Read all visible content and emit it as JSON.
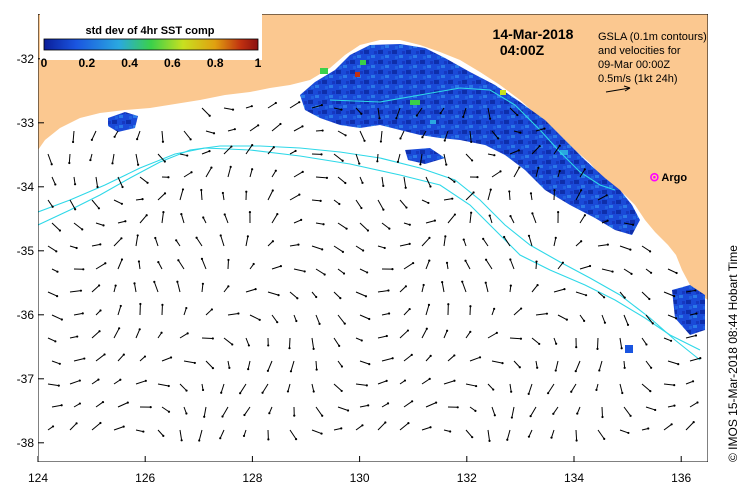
{
  "title": {
    "date": "14-Mar-2018",
    "time": "04:00Z"
  },
  "colorbar": {
    "title": "std dev of 4hr SST comp",
    "tick_labels": [
      "0",
      "0.2",
      "0.4",
      "0.6",
      "0.8",
      "1"
    ],
    "colors": [
      "#0a1e9a",
      "#1a55e0",
      "#2aa8e0",
      "#3ad04a",
      "#c8e020",
      "#e0a010",
      "#c03010",
      "#8a1010"
    ]
  },
  "gsla_note": {
    "line1": "GSLA (0.1m contours)",
    "line2": "and velocities for",
    "line3": "09-Mar 00:00Z",
    "line4": "0.5m/s (1kt 24h)"
  },
  "argo": {
    "label": "Argo",
    "lon": 135.5,
    "lat": -33.85,
    "color": "#ff00ff"
  },
  "credit": "© IMOS 15-Mar-2018 08:44 Hobart Time",
  "axes": {
    "x_ticks": [
      124,
      126,
      128,
      130,
      132,
      134,
      136
    ],
    "x_tick_labels": [
      "124",
      "126",
      "128",
      "130",
      "132",
      "134",
      "136"
    ],
    "y_ticks": [
      -32,
      -33,
      -34,
      -35,
      -36,
      -37,
      -38
    ],
    "y_tick_labels": [
      "-32",
      "-33",
      "-34",
      "-35",
      "-36",
      "-37",
      "-38"
    ],
    "lon_range": [
      124,
      136.5
    ],
    "lat_range": [
      -38.3,
      -31.3
    ]
  },
  "colors": {
    "land": "#fbc890",
    "contour": "#2ed8e8",
    "arrow": "#000000"
  }
}
